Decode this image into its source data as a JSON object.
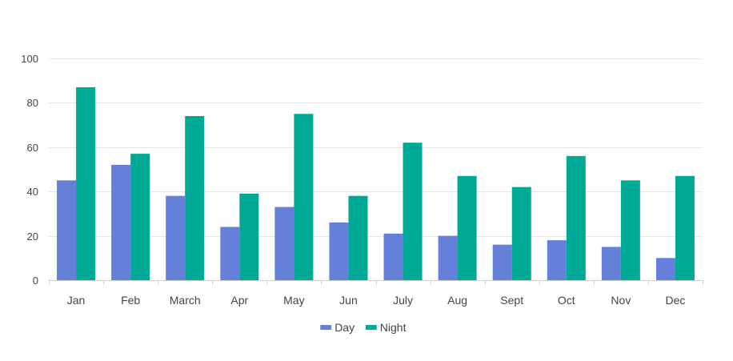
{
  "chart_data": {
    "type": "bar",
    "categories": [
      "Jan",
      "Feb",
      "March",
      "Apr",
      "May",
      "Jun",
      "July",
      "Aug",
      "Sept",
      "Oct",
      "Nov",
      "Dec"
    ],
    "series": [
      {
        "name": "Day",
        "color": "#6580d8",
        "values": [
          45,
          52,
          38,
          24,
          33,
          26,
          21,
          20,
          16,
          18,
          15,
          10
        ]
      },
      {
        "name": "Night",
        "color": "#00a896",
        "values": [
          87,
          57,
          74,
          39,
          75,
          38,
          62,
          47,
          42,
          56,
          45,
          47
        ]
      }
    ],
    "ylim": [
      0,
      100
    ],
    "yticks": [
      0,
      20,
      40,
      60,
      80,
      100
    ],
    "grid": true,
    "legend_position": "bottom-center"
  }
}
